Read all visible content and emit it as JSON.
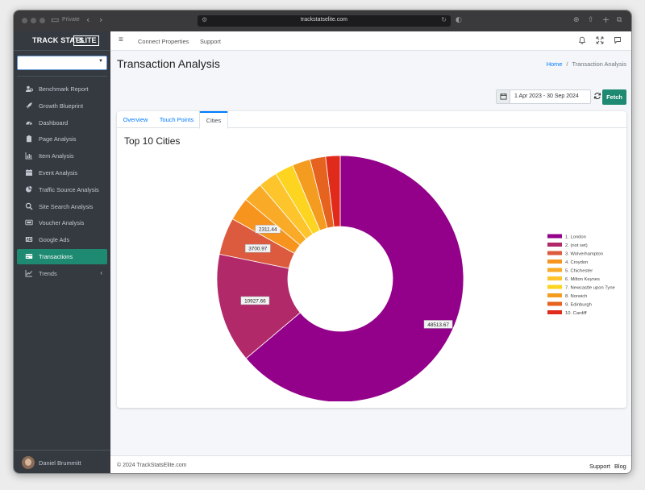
{
  "browser": {
    "private_label": "Private",
    "url": "trackstatselite.com"
  },
  "brand": {
    "name": "TRACK STATS",
    "badge": "ELITE"
  },
  "sidebar": {
    "items": [
      {
        "label": "Benchmark Report",
        "icon": "users-cog-icon"
      },
      {
        "label": "Growth Blueprint",
        "icon": "rocket-icon"
      },
      {
        "label": "Dashboard",
        "icon": "dashboard-icon"
      },
      {
        "label": "Page Analysis",
        "icon": "clipboard-icon"
      },
      {
        "label": "Item Analysis",
        "icon": "bar-chart-icon"
      },
      {
        "label": "Event Analysis",
        "icon": "calendar-icon"
      },
      {
        "label": "Traffic Source Analysis",
        "icon": "pie-chart-icon"
      },
      {
        "label": "Site Search Analysis",
        "icon": "search-icon"
      },
      {
        "label": "Voucher Analysis",
        "icon": "ticket-icon"
      },
      {
        "label": "Google Ads",
        "icon": "ad-icon"
      },
      {
        "label": "Transactions",
        "icon": "credit-card-icon"
      },
      {
        "label": "Trends",
        "icon": "line-chart-icon"
      }
    ],
    "active": "Transactions",
    "user": "Daniel Brummitt"
  },
  "topnav": {
    "links": [
      "Connect Properties",
      "Support"
    ]
  },
  "page": {
    "title": "Transaction Analysis",
    "breadcrumb_home": "Home",
    "breadcrumb_sep": "/",
    "breadcrumb_current": "Transaction Analysis",
    "date_range": "1 Apr 2023 - 30 Sep 2024",
    "fetch_label": "Fetch"
  },
  "tabs": [
    {
      "label": "Overview"
    },
    {
      "label": "Touch Points"
    },
    {
      "label": "Cities"
    }
  ],
  "active_tab": "Cities",
  "card_title": "Top 10 Cities",
  "chart_data": {
    "type": "pie",
    "donut": true,
    "title": "Top 10 Cities",
    "legend_position": "right",
    "series": [
      {
        "label": "1. London",
        "value": 48513.67,
        "color": "#93008a",
        "show_label": true
      },
      {
        "label": "2. (not set)",
        "value": 10927.66,
        "color": "#b2296a",
        "show_label": true
      },
      {
        "label": "3. Wolverhampton",
        "value": 3700.97,
        "color": "#dc5a3d",
        "show_label": true
      },
      {
        "label": "4. Croydon",
        "value": 2311.44,
        "color": "#f7941e",
        "show_label": true
      },
      {
        "label": "5. Chichester",
        "value": 2000,
        "color": "#f9ab28",
        "show_label": false
      },
      {
        "label": "6. Milton Keynes",
        "value": 1900,
        "color": "#fdc42b",
        "show_label": false
      },
      {
        "label": "7. Newcastle upon Tyne",
        "value": 1850,
        "color": "#fdd41f",
        "show_label": false
      },
      {
        "label": "8. Norwich",
        "value": 1800,
        "color": "#f39c1f",
        "show_label": false
      },
      {
        "label": "9. Edinburgh",
        "value": 1550,
        "color": "#e6621f",
        "show_label": false
      },
      {
        "label": "10. Cardiff",
        "value": 1450,
        "color": "#e02a1c",
        "show_label": false
      }
    ]
  },
  "footer": {
    "copyright": "© 2024 TrackStatsElite.com",
    "links": [
      "Support",
      "Blog"
    ]
  }
}
